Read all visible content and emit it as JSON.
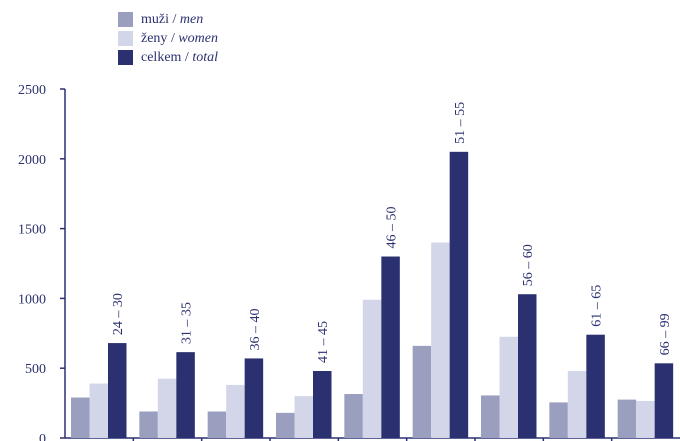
{
  "chart_data": {
    "type": "bar",
    "categories": [
      "24 – 30",
      "31 – 35",
      "36 – 40",
      "41 – 45",
      "46 – 50",
      "51 – 55",
      "56 – 60",
      "61 – 65",
      "66 – 99"
    ],
    "series": [
      {
        "name": "muži / men",
        "name_main": "muži",
        "name_en": "men",
        "color": "#9a9fc0",
        "values": [
          290,
          190,
          190,
          180,
          315,
          660,
          305,
          255,
          275
        ]
      },
      {
        "name": "ženy / women",
        "name_main": "ženy",
        "name_en": "women",
        "color": "#d3d6e8",
        "values": [
          390,
          425,
          380,
          300,
          990,
          1400,
          725,
          480,
          265
        ]
      },
      {
        "name": "celkem / total",
        "name_main": "celkem",
        "name_en": "total",
        "color": "#2b3170",
        "values": [
          680,
          615,
          570,
          480,
          1300,
          2050,
          1030,
          740,
          535
        ]
      }
    ],
    "yticks": [
      "0",
      "500",
      "1000",
      "1500",
      "2000",
      "2500"
    ],
    "ylim": [
      0,
      2500
    ],
    "legend_position": "top-left",
    "grid": false
  }
}
